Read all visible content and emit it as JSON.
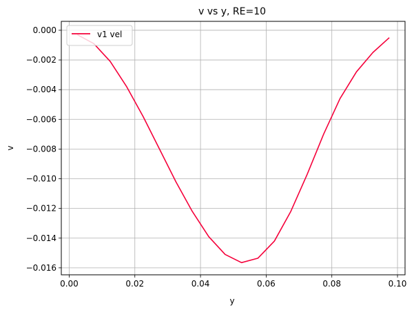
{
  "chart_data": {
    "type": "line",
    "title": "v vs y, RE=10",
    "xlabel": "y",
    "ylabel": "v",
    "xlim": [
      -0.0024,
      0.1023
    ],
    "ylim": [
      -0.01647,
      0.0006
    ],
    "xticks": [
      0.0,
      0.02,
      0.04,
      0.06,
      0.08,
      0.1
    ],
    "xtick_labels": [
      "0.00",
      "0.02",
      "0.04",
      "0.06",
      "0.08",
      "0.10"
    ],
    "yticks": [
      0.0,
      -0.002,
      -0.004,
      -0.006,
      -0.008,
      -0.01,
      -0.012,
      -0.014,
      -0.016
    ],
    "ytick_labels": [
      "0.000",
      "−0.002",
      "−0.004",
      "−0.006",
      "−0.008",
      "−0.010",
      "−0.012",
      "−0.014",
      "−0.016"
    ],
    "grid": true,
    "legend_position": "top-left",
    "series": [
      {
        "name": "v1 vel",
        "color": "#f5003a",
        "x": [
          0.0025,
          0.0075,
          0.0125,
          0.0175,
          0.0225,
          0.0275,
          0.0325,
          0.0375,
          0.0425,
          0.0475,
          0.0525,
          0.0575,
          0.0625,
          0.0675,
          0.0725,
          0.0775,
          0.0825,
          0.0875,
          0.0925,
          0.0975
        ],
        "y": [
          -0.0003,
          -0.0009,
          -0.0021,
          -0.0038,
          -0.0058,
          -0.008,
          -0.0102,
          -0.0122,
          -0.0139,
          -0.0151,
          -0.01565,
          -0.01535,
          -0.0142,
          -0.0122,
          -0.0097,
          -0.007,
          -0.0046,
          -0.0028,
          -0.0015,
          -0.0005
        ]
      }
    ]
  }
}
